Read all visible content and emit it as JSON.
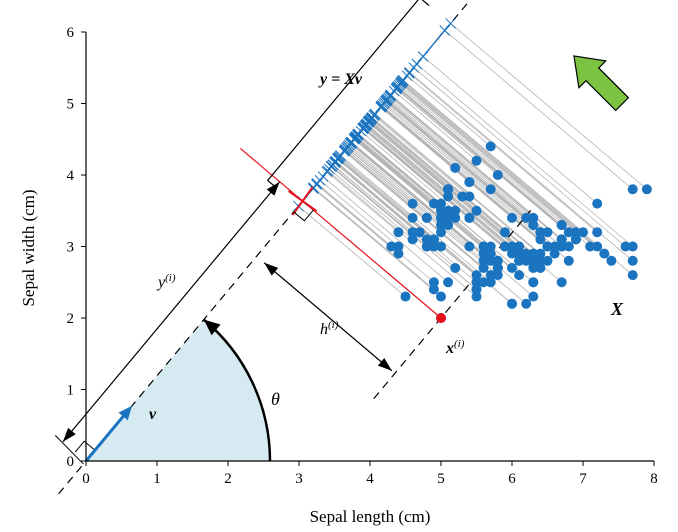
{
  "chart_data": {
    "type": "scatter",
    "xlabel": "Sepal length (cm)",
    "ylabel": "Sepal width (cm)",
    "xlim": [
      0,
      8
    ],
    "ylim": [
      0,
      6
    ],
    "x_ticks": [
      "0",
      "1",
      "2",
      "3",
      "4",
      "5",
      "6",
      "7",
      "8"
    ],
    "y_ticks": [
      "0",
      "1",
      "2",
      "3",
      "4",
      "5",
      "6"
    ],
    "grid": false,
    "projection_angle_deg": 50,
    "highlighted_point": [
      5.0,
      2.0
    ],
    "colors": {
      "points": "#1a74c0",
      "highlight": "#e8101a",
      "projection_lines": "#b4b4b4",
      "angle_fill": "#d6eaf2",
      "arrow_green": "#7dc342",
      "vector_blue": "#1a74c0"
    },
    "points": [
      [
        5.1,
        3.5
      ],
      [
        4.9,
        3.0
      ],
      [
        4.7,
        3.2
      ],
      [
        4.6,
        3.1
      ],
      [
        5.0,
        3.6
      ],
      [
        5.4,
        3.9
      ],
      [
        4.6,
        3.4
      ],
      [
        5.0,
        3.4
      ],
      [
        4.4,
        2.9
      ],
      [
        4.9,
        3.1
      ],
      [
        5.4,
        3.7
      ],
      [
        4.8,
        3.4
      ],
      [
        4.8,
        3.0
      ],
      [
        4.3,
        3.0
      ],
      [
        5.8,
        4.0
      ],
      [
        5.7,
        4.4
      ],
      [
        5.4,
        3.9
      ],
      [
        5.1,
        3.5
      ],
      [
        5.7,
        3.8
      ],
      [
        5.1,
        3.8
      ],
      [
        5.4,
        3.4
      ],
      [
        5.1,
        3.7
      ],
      [
        4.6,
        3.6
      ],
      [
        5.1,
        3.3
      ],
      [
        4.8,
        3.4
      ],
      [
        5.0,
        3.0
      ],
      [
        5.0,
        3.4
      ],
      [
        5.2,
        3.5
      ],
      [
        5.2,
        3.4
      ],
      [
        4.7,
        3.2
      ],
      [
        4.8,
        3.1
      ],
      [
        5.4,
        3.4
      ],
      [
        5.2,
        4.1
      ],
      [
        5.5,
        4.2
      ],
      [
        4.9,
        3.1
      ],
      [
        5.0,
        3.2
      ],
      [
        5.5,
        3.5
      ],
      [
        4.9,
        3.6
      ],
      [
        4.4,
        3.0
      ],
      [
        5.1,
        3.4
      ],
      [
        5.0,
        3.5
      ],
      [
        4.5,
        2.3
      ],
      [
        4.4,
        3.2
      ],
      [
        5.0,
        3.5
      ],
      [
        5.1,
        3.8
      ],
      [
        4.8,
        3.0
      ],
      [
        5.1,
        3.8
      ],
      [
        4.6,
        3.2
      ],
      [
        5.3,
        3.7
      ],
      [
        5.0,
        3.3
      ],
      [
        7.0,
        3.2
      ],
      [
        6.4,
        3.2
      ],
      [
        6.9,
        3.1
      ],
      [
        5.5,
        2.3
      ],
      [
        6.5,
        2.8
      ],
      [
        5.7,
        2.8
      ],
      [
        6.3,
        3.3
      ],
      [
        4.9,
        2.4
      ],
      [
        6.6,
        2.9
      ],
      [
        5.2,
        2.7
      ],
      [
        5.0,
        2.0
      ],
      [
        5.9,
        3.0
      ],
      [
        6.0,
        2.2
      ],
      [
        6.1,
        2.9
      ],
      [
        5.6,
        2.9
      ],
      [
        6.7,
        3.1
      ],
      [
        5.6,
        3.0
      ],
      [
        5.8,
        2.7
      ],
      [
        6.2,
        2.2
      ],
      [
        5.6,
        2.5
      ],
      [
        5.9,
        3.2
      ],
      [
        6.1,
        2.8
      ],
      [
        6.3,
        2.5
      ],
      [
        6.1,
        2.8
      ],
      [
        6.4,
        2.9
      ],
      [
        6.6,
        3.0
      ],
      [
        6.8,
        2.8
      ],
      [
        6.7,
        3.0
      ],
      [
        6.0,
        2.9
      ],
      [
        5.7,
        2.6
      ],
      [
        5.5,
        2.4
      ],
      [
        5.5,
        2.4
      ],
      [
        5.8,
        2.7
      ],
      [
        6.0,
        2.7
      ],
      [
        5.4,
        3.0
      ],
      [
        6.0,
        3.4
      ],
      [
        6.7,
        3.1
      ],
      [
        6.3,
        2.3
      ],
      [
        5.6,
        3.0
      ],
      [
        5.5,
        2.5
      ],
      [
        5.5,
        2.6
      ],
      [
        6.1,
        3.0
      ],
      [
        5.8,
        2.6
      ],
      [
        5.0,
        2.3
      ],
      [
        5.6,
        2.7
      ],
      [
        5.7,
        3.0
      ],
      [
        5.7,
        2.9
      ],
      [
        6.2,
        2.9
      ],
      [
        5.1,
        2.5
      ],
      [
        5.7,
        2.8
      ],
      [
        6.3,
        3.3
      ],
      [
        5.8,
        2.7
      ],
      [
        7.1,
        3.0
      ],
      [
        6.3,
        2.9
      ],
      [
        6.5,
        3.0
      ],
      [
        7.6,
        3.0
      ],
      [
        4.9,
        2.5
      ],
      [
        7.3,
        2.9
      ],
      [
        6.7,
        2.5
      ],
      [
        7.2,
        3.6
      ],
      [
        6.5,
        3.2
      ],
      [
        6.4,
        2.7
      ],
      [
        6.8,
        3.0
      ],
      [
        5.7,
        2.5
      ],
      [
        5.8,
        2.8
      ],
      [
        6.4,
        3.2
      ],
      [
        6.5,
        3.0
      ],
      [
        7.7,
        3.8
      ],
      [
        7.7,
        2.6
      ],
      [
        6.0,
        2.2
      ],
      [
        6.9,
        3.2
      ],
      [
        5.6,
        2.8
      ],
      [
        7.7,
        2.8
      ],
      [
        6.3,
        2.7
      ],
      [
        6.7,
        3.3
      ],
      [
        7.2,
        3.2
      ],
      [
        6.2,
        2.8
      ],
      [
        6.1,
        3.0
      ],
      [
        6.4,
        2.8
      ],
      [
        7.2,
        3.0
      ],
      [
        7.4,
        2.8
      ],
      [
        7.9,
        3.8
      ],
      [
        6.4,
        2.8
      ],
      [
        6.3,
        2.8
      ],
      [
        6.1,
        2.6
      ],
      [
        7.7,
        3.0
      ],
      [
        6.3,
        3.4
      ],
      [
        6.4,
        3.1
      ],
      [
        6.0,
        3.0
      ],
      [
        6.9,
        3.1
      ],
      [
        6.7,
        3.1
      ],
      [
        6.9,
        3.1
      ],
      [
        5.8,
        2.7
      ],
      [
        6.8,
        3.2
      ],
      [
        6.7,
        3.3
      ],
      [
        6.7,
        3.0
      ],
      [
        6.3,
        2.5
      ],
      [
        6.5,
        3.0
      ],
      [
        6.2,
        3.4
      ],
      [
        5.9,
        3.0
      ]
    ],
    "annotations": [
      {
        "id": "label_y",
        "text": "y = Xv"
      },
      {
        "id": "label_X",
        "text": "X"
      },
      {
        "id": "label_v",
        "text": "v"
      },
      {
        "id": "label_theta",
        "text": "θ"
      },
      {
        "id": "label_y_i",
        "text": "y",
        "sup": "(i)"
      },
      {
        "id": "label_h_i",
        "text": "h",
        "sup": "(i)"
      },
      {
        "id": "label_x_i",
        "text": "x",
        "sup": "(i)"
      }
    ]
  }
}
